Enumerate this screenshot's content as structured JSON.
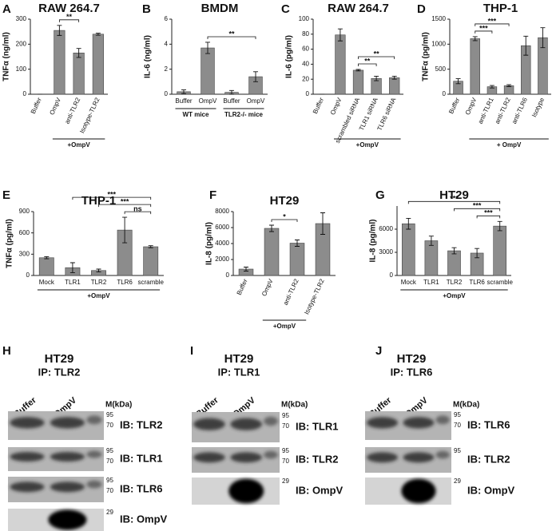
{
  "chart_data": [
    {
      "type": "bar",
      "letter": "A",
      "title": "RAW 264.7",
      "ylabel": "TNFα (ng/ml)",
      "categories": [
        "Buffer",
        "OmpV",
        "anti-TLR2",
        "Isotype-TLR2"
      ],
      "values": [
        0,
        255,
        165,
        240
      ],
      "errors": [
        0,
        20,
        18,
        4
      ],
      "ylim": [
        0,
        300
      ],
      "yticks": [
        0,
        100,
        200,
        300
      ],
      "color": "#8c8c8c",
      "brackets": [
        {
          "span": [
            1,
            2
          ],
          "label": "**"
        }
      ],
      "groups": [
        {
          "span": [
            1,
            3
          ],
          "label": "+OmpV"
        }
      ]
    },
    {
      "type": "bar",
      "letter": "B",
      "title": "BMDM",
      "ylabel": "IL-6 (ng/ml)",
      "categories": [
        "Buffer",
        "OmpV",
        "Buffer",
        "OmpV"
      ],
      "values": [
        0.2,
        3.7,
        0.15,
        1.4
      ],
      "errors": [
        0.15,
        0.45,
        0.15,
        0.4
      ],
      "ylim": [
        0,
        6
      ],
      "yticks": [
        0,
        2,
        4,
        6
      ],
      "color": "#8c8c8c",
      "brackets": [
        {
          "span": [
            1,
            3
          ],
          "label": "**"
        }
      ],
      "groups": [
        {
          "span": [
            0,
            1
          ],
          "label": "WT mice"
        },
        {
          "span": [
            2,
            3
          ],
          "label": "TLR2-/- mice"
        }
      ]
    },
    {
      "type": "bar",
      "letter": "C",
      "title": "RAW 264.7",
      "ylabel": "IL-6 (pg/ml)",
      "categories": [
        "Buffer",
        "OmpV",
        "scrambled siRNA",
        "TLR1 siRNA",
        "TLR6 siRNA"
      ],
      "values": [
        0,
        79,
        32,
        21,
        22
      ],
      "errors": [
        0,
        8,
        1,
        3,
        2
      ],
      "ylim": [
        0,
        100
      ],
      "yticks": [
        0,
        20,
        40,
        60,
        80,
        100
      ],
      "color": "#8c8c8c",
      "brackets": [
        {
          "span": [
            2,
            3
          ],
          "label": "**"
        },
        {
          "span": [
            2,
            4
          ],
          "label": "**"
        }
      ],
      "groups": [
        {
          "span": [
            1,
            4
          ],
          "label": "+OmpV"
        }
      ]
    },
    {
      "type": "bar",
      "letter": "D",
      "title": "THP-1",
      "ylabel": "TNFα (pg/ml)",
      "categories": [
        "Buffer",
        "OmpV",
        "anti-TLR1",
        "anti-TLR2",
        "anti-TLR6",
        "Isotype"
      ],
      "values": [
        260,
        1110,
        150,
        170,
        970,
        1130
      ],
      "errors": [
        50,
        40,
        25,
        20,
        190,
        200
      ],
      "ylim": [
        0,
        1500
      ],
      "yticks": [
        0,
        500,
        1000,
        1500
      ],
      "color": "#8c8c8c",
      "brackets": [
        {
          "span": [
            1,
            2
          ],
          "label": "***"
        },
        {
          "span": [
            1,
            3
          ],
          "label": "***"
        }
      ],
      "groups": [
        {
          "span": [
            1,
            5
          ],
          "label": "+ OmpV"
        }
      ]
    },
    {
      "type": "bar",
      "letter": "E",
      "title": "THP-1",
      "ylabel": "TNFα (pg/ml)",
      "categories": [
        "Mock",
        "TLR1",
        "TLR2",
        "TLR6",
        "scramble"
      ],
      "values": [
        250,
        110,
        70,
        640,
        405
      ],
      "errors": [
        15,
        70,
        20,
        180,
        15
      ],
      "ylim": [
        0,
        900
      ],
      "yticks": [
        0,
        300,
        600,
        900
      ],
      "color": "#8c8c8c",
      "brackets": [
        {
          "span": [
            3,
            4
          ],
          "label": "ns"
        },
        {
          "span": [
            2,
            4
          ],
          "label": "***"
        },
        {
          "span": [
            1,
            4
          ],
          "label": "***"
        }
      ],
      "groups": [
        {
          "span": [
            0,
            4
          ],
          "label": "+OmpV"
        }
      ]
    },
    {
      "type": "bar",
      "letter": "F",
      "title": "HT29",
      "ylabel": "IL-8 (pg/ml)",
      "categories": [
        "Buffer",
        "OmpV",
        "anti-TLR2",
        "Isotype-TLR2"
      ],
      "values": [
        800,
        5900,
        4050,
        6500
      ],
      "errors": [
        250,
        400,
        400,
        1350
      ],
      "ylim": [
        0,
        8000
      ],
      "yticks": [
        0,
        2000,
        4000,
        6000,
        8000
      ],
      "color": "#8c8c8c",
      "brackets": [
        {
          "span": [
            1,
            2
          ],
          "label": "*"
        }
      ],
      "groups": [
        {
          "span": [
            1,
            2
          ],
          "label": "+OmpV"
        }
      ]
    },
    {
      "type": "bar",
      "letter": "G",
      "title": "HT29",
      "ylabel": "IL-8 (pg/ml)",
      "categories": [
        "Mock",
        "TLR1",
        "TLR2",
        "TLR6",
        "scramble"
      ],
      "values": [
        6700,
        4500,
        3200,
        2900,
        6400
      ],
      "errors": [
        700,
        600,
        400,
        600,
        600
      ],
      "ylim": [
        0,
        9000
      ],
      "yticks": [
        0,
        3000,
        6000
      ],
      "color": "#8c8c8c",
      "brackets": [
        {
          "span": [
            3,
            4
          ],
          "label": "***"
        },
        {
          "span": [
            2,
            4
          ],
          "label": "***"
        },
        {
          "span": [
            0,
            4
          ],
          "label": "***"
        }
      ],
      "groups": [
        {
          "span": [
            0,
            4
          ],
          "label": "+OmpV"
        }
      ]
    }
  ],
  "blots": [
    {
      "letter": "H",
      "title": "HT29",
      "ip": "IP: TLR2",
      "lanes": [
        "Buffer",
        "OmpV"
      ],
      "marker": "M(kDa)",
      "rows": [
        {
          "label": "IB: TLR2",
          "markers": [
            95,
            70
          ]
        },
        {
          "label": "IB: TLR1",
          "markers": [
            95,
            70
          ]
        },
        {
          "label": "IB: TLR6",
          "markers": [
            95,
            70
          ]
        },
        {
          "label": "IB: OmpV",
          "markers": [
            29
          ]
        }
      ]
    },
    {
      "letter": "I",
      "title": "HT29",
      "ip": "IP: TLR1",
      "lanes": [
        "Buffer",
        "OmpV"
      ],
      "marker": "M(kDa)",
      "rows": [
        {
          "label": "IB: TLR1",
          "markers": [
            95,
            70
          ]
        },
        {
          "label": "IB: TLR2",
          "markers": [
            95,
            70
          ]
        },
        {
          "label": "IB: OmpV",
          "markers": [
            29
          ]
        }
      ]
    },
    {
      "letter": "J",
      "title": "HT29",
      "ip": "IP: TLR6",
      "lanes": [
        "Buffer",
        "OmpV"
      ],
      "marker": "M(kDa)",
      "rows": [
        {
          "label": "IB: TLR6",
          "markers": [
            95,
            70
          ]
        },
        {
          "label": "IB: TLR2",
          "markers": [
            95
          ]
        },
        {
          "label": "IB: OmpV",
          "markers": [
            29
          ]
        }
      ]
    }
  ]
}
